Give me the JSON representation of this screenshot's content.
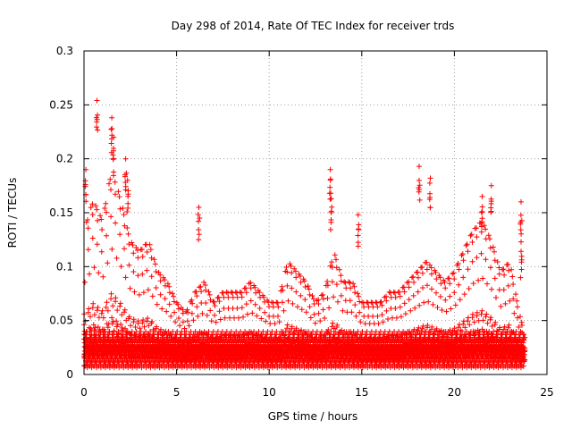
{
  "chart_data": {
    "type": "scatter",
    "title": "Day 298 of 2014, Rate Of TEC Index for receiver trds",
    "xlabel": "GPS time / hours",
    "ylabel": "ROTI / TECUs",
    "xlim": [
      0,
      25
    ],
    "ylim": [
      0,
      0.3
    ],
    "x_ticks": [
      0,
      5,
      10,
      15,
      20,
      25
    ],
    "x_tick_labels": [
      "0",
      "5",
      "10",
      "15",
      "20",
      "25"
    ],
    "y_ticks": [
      0,
      0.05,
      0.1,
      0.15,
      0.2,
      0.25,
      0.3
    ],
    "y_tick_labels": [
      "0",
      "0.05",
      "0.1",
      "0.15",
      "0.2",
      "0.25",
      "0.3"
    ],
    "grid": true,
    "marker": "+",
    "marker_color": "#ff0000",
    "series": [
      {
        "name": "ROTI",
        "note": "dense points every ~0.02 h from 0 to ~23.8 h; baseline mostly 0.01-0.04 TECU with bursts",
        "envelope_x": [
          0,
          0.5,
          1,
          1.5,
          2,
          2.5,
          3,
          3.5,
          4,
          4.5,
          5,
          5.5,
          6,
          6.5,
          7,
          7.5,
          8,
          8.5,
          9,
          9.5,
          10,
          10.5,
          11,
          11.5,
          12,
          12.5,
          13,
          13.5,
          14,
          14.5,
          15,
          15.5,
          16,
          16.5,
          17,
          17.5,
          18,
          18.5,
          19,
          19.5,
          20,
          20.5,
          21,
          21.5,
          22,
          22.5,
          23,
          23.5,
          23.8
        ],
        "envelope_y": [
          0.14,
          0.17,
          0.15,
          0.2,
          0.17,
          0.13,
          0.12,
          0.13,
          0.1,
          0.09,
          0.07,
          0.06,
          0.08,
          0.09,
          0.07,
          0.08,
          0.08,
          0.08,
          0.09,
          0.08,
          0.07,
          0.07,
          0.11,
          0.1,
          0.09,
          0.07,
          0.08,
          0.12,
          0.09,
          0.09,
          0.07,
          0.07,
          0.07,
          0.08,
          0.08,
          0.09,
          0.1,
          0.11,
          0.1,
          0.09,
          0.1,
          0.12,
          0.14,
          0.15,
          0.13,
          0.1,
          0.11,
          0.06,
          0.04
        ],
        "highlights": [
          {
            "x": 0.7,
            "y": 0.254
          },
          {
            "x": 0.1,
            "y": 0.19
          },
          {
            "x": 1.5,
            "y": 0.238
          },
          {
            "x": 1.6,
            "y": 0.22
          },
          {
            "x": 2.25,
            "y": 0.2
          },
          {
            "x": 2.35,
            "y": 0.18
          },
          {
            "x": 6.2,
            "y": 0.155
          },
          {
            "x": 13.3,
            "y": 0.19
          },
          {
            "x": 13.35,
            "y": 0.163
          },
          {
            "x": 14.8,
            "y": 0.148
          },
          {
            "x": 18.1,
            "y": 0.193
          },
          {
            "x": 18.7,
            "y": 0.182
          },
          {
            "x": 21.5,
            "y": 0.165
          },
          {
            "x": 22.0,
            "y": 0.175
          },
          {
            "x": 23.6,
            "y": 0.16
          },
          {
            "x": 23.6,
            "y": 0.123
          }
        ]
      }
    ]
  }
}
